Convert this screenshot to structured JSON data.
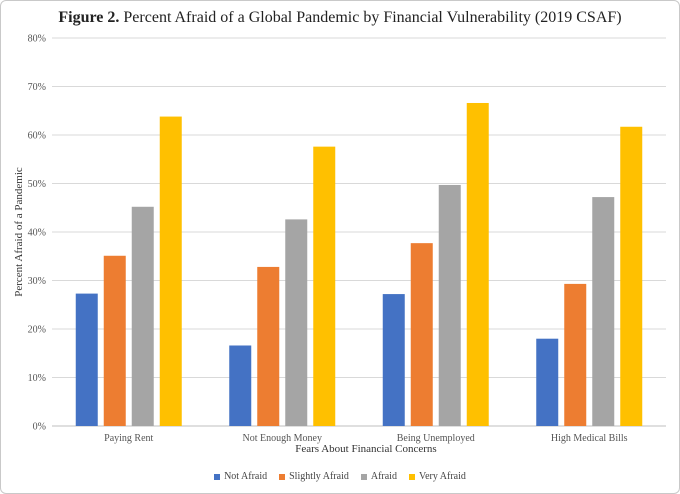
{
  "title": {
    "bold": "Figure 2.",
    "rest": " Percent Afraid of a Global Pandemic by Financial Vulnerability (2019 CSAF)"
  },
  "chart_data": {
    "type": "bar",
    "categories": [
      "Paying Rent",
      "Not Enough Money",
      "Being Unemployed",
      "High Medical Bills"
    ],
    "series": [
      {
        "name": "Not Afraid",
        "color": "#4472C4",
        "values": [
          27.3,
          16.6,
          27.2,
          18.0
        ]
      },
      {
        "name": "Slightly Afraid",
        "color": "#ED7D31",
        "values": [
          35.1,
          32.8,
          37.7,
          29.3
        ]
      },
      {
        "name": "Afraid",
        "color": "#A5A5A5",
        "values": [
          45.2,
          42.6,
          49.7,
          47.2
        ]
      },
      {
        "name": "Very Afraid",
        "color": "#FFC000",
        "values": [
          63.8,
          57.6,
          66.6,
          61.7
        ]
      }
    ],
    "xlabel": "Fears About Financial Concerns",
    "ylabel": "Percent Afraid of a Pandemic",
    "ylim": [
      0,
      80
    ],
    "yticks": [
      "0%",
      "10%",
      "20%",
      "30%",
      "40%",
      "50%",
      "60%",
      "70%",
      "80%"
    ],
    "grid": true,
    "legend_position": "bottom"
  }
}
